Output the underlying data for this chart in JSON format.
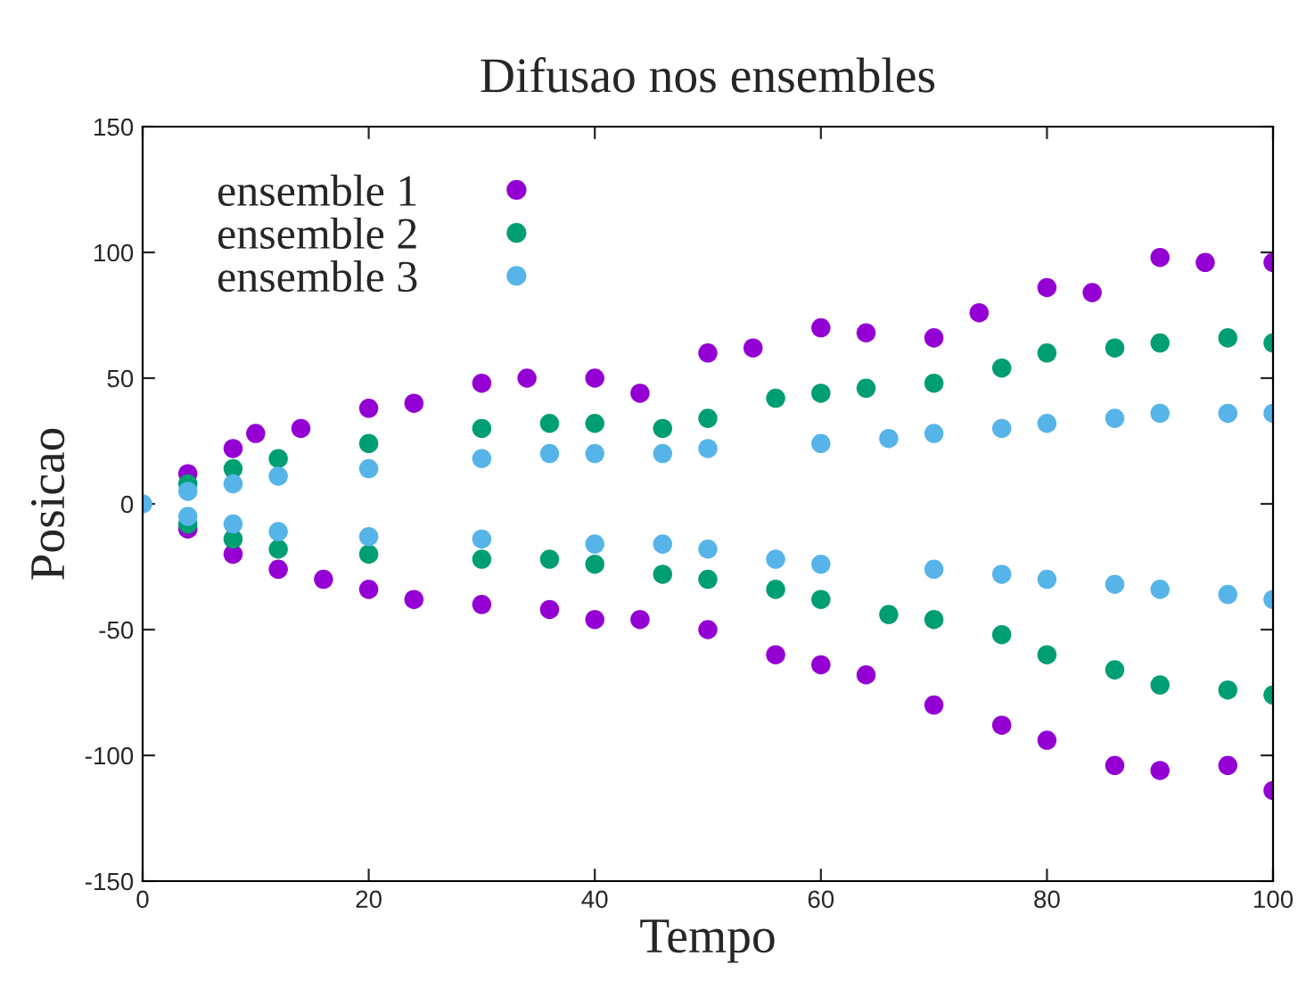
{
  "chart_data": {
    "type": "scatter",
    "title": "Difusao nos ensembles",
    "xlabel": "Tempo",
    "ylabel": "Posicao",
    "xlim": [
      0,
      100
    ],
    "ylim": [
      -150,
      150
    ],
    "xticks": [
      0,
      20,
      40,
      60,
      80,
      100
    ],
    "yticks": [
      -150,
      -100,
      -50,
      0,
      50,
      100,
      150
    ],
    "grid": false,
    "legend": "top left",
    "marker": "circle",
    "series": [
      {
        "name": "ensemble 1",
        "color": "#9400d3",
        "x": [
          4,
          8,
          10,
          14,
          20,
          24,
          30,
          34,
          40,
          44,
          50,
          54,
          60,
          64,
          70,
          74,
          80,
          84,
          90,
          94,
          100,
          4,
          8,
          12,
          16,
          20,
          24,
          30,
          36,
          40,
          44,
          50,
          56,
          60,
          64,
          70,
          76,
          80,
          86,
          90,
          96,
          100
        ],
        "values": [
          12,
          22,
          28,
          30,
          38,
          40,
          48,
          50,
          50,
          44,
          60,
          62,
          70,
          68,
          66,
          76,
          86,
          84,
          98,
          96,
          96,
          -10,
          -20,
          -26,
          -30,
          -34,
          -38,
          -40,
          -42,
          -46,
          -46,
          -50,
          -60,
          -64,
          -68,
          -80,
          -88,
          -94,
          -104,
          -106,
          -104,
          -114
        ]
      },
      {
        "name": "ensemble 2",
        "color": "#009e73",
        "x": [
          4,
          8,
          12,
          20,
          30,
          36,
          40,
          46,
          50,
          56,
          60,
          64,
          70,
          76,
          80,
          86,
          90,
          96,
          100,
          4,
          8,
          12,
          20,
          30,
          36,
          40,
          46,
          50,
          56,
          60,
          66,
          70,
          76,
          80,
          86,
          90,
          96,
          100
        ],
        "values": [
          8,
          14,
          18,
          24,
          30,
          32,
          32,
          30,
          34,
          42,
          44,
          46,
          48,
          54,
          60,
          62,
          64,
          66,
          64,
          -8,
          -14,
          -18,
          -20,
          -22,
          -22,
          -24,
          -28,
          -30,
          -34,
          -38,
          -44,
          -46,
          -52,
          -60,
          -66,
          -72,
          -74,
          -76
        ]
      },
      {
        "name": "ensemble 3",
        "color": "#56b4e9",
        "x": [
          0,
          4,
          8,
          12,
          20,
          30,
          36,
          40,
          46,
          50,
          60,
          66,
          70,
          76,
          80,
          86,
          90,
          96,
          100,
          4,
          8,
          12,
          20,
          30,
          40,
          46,
          50,
          56,
          60,
          70,
          76,
          80,
          86,
          90,
          96,
          100
        ],
        "values": [
          0,
          5,
          8,
          11,
          14,
          18,
          20,
          20,
          20,
          22,
          24,
          26,
          28,
          30,
          32,
          34,
          36,
          36,
          36,
          -5,
          -8,
          -11,
          -13,
          -14,
          -16,
          -16,
          -18,
          -22,
          -24,
          -26,
          -28,
          -30,
          -32,
          -34,
          -36,
          -38
        ]
      }
    ]
  }
}
